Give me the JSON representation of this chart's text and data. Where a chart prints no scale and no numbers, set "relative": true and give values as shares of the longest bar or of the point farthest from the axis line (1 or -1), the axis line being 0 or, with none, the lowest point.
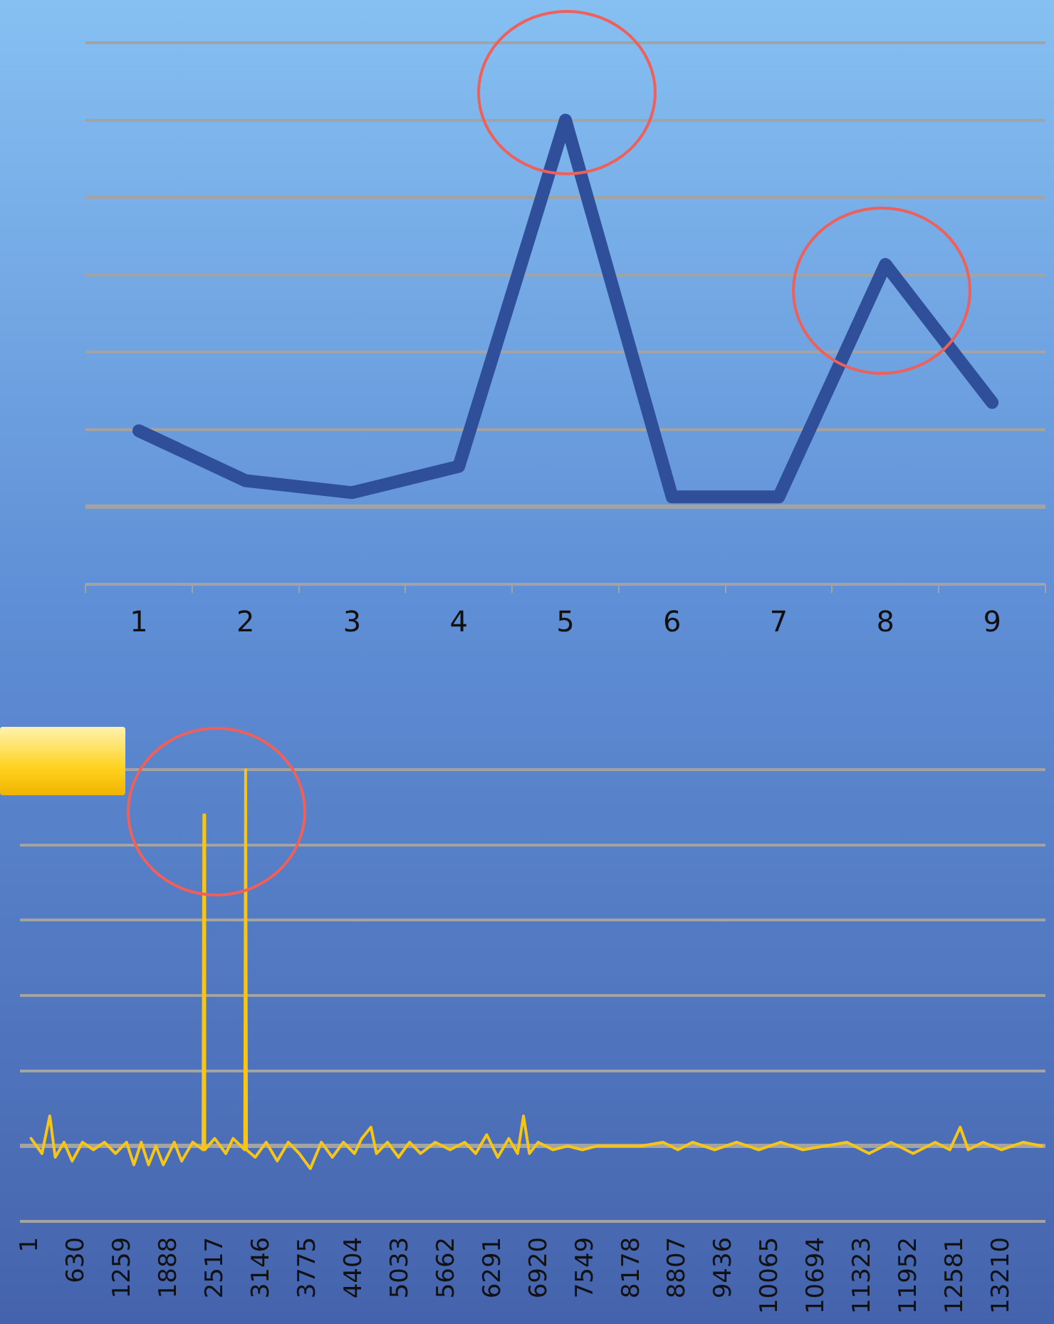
{
  "chart_data": [
    {
      "type": "line",
      "categories": [
        "1",
        "2",
        "3",
        "4",
        "5",
        "6",
        "7",
        "8",
        "9"
      ],
      "relative": true,
      "grid": "y",
      "marker": "none",
      "series": [
        {
          "color": "#2f4f9b",
          "values": [
            0.197,
            0.068,
            0.037,
            0.105,
            1,
            0.026,
            0.026,
            0.627,
            0.27
          ]
        }
      ]
    },
    {
      "type": "line",
      "relative": true,
      "grid": "y",
      "marker": "none",
      "xlim": [
        -150,
        13800
      ],
      "xticks": [
        1,
        630,
        1259,
        1888,
        2517,
        3146,
        3775,
        4404,
        5033,
        5662,
        6291,
        6920,
        7549,
        8178,
        8807,
        9436,
        10065,
        10694,
        11323,
        11952,
        12581,
        13210
      ],
      "series": [
        {
          "color": "#f5c518",
          "x": [
            1,
            150,
            256,
            330,
            450,
            560,
            700,
            850,
            1000,
            1150,
            1300,
            1400,
            1500,
            1600,
            1700,
            1800,
            1950,
            2050,
            2200,
            2340,
            2352,
            2364,
            2500,
            2650,
            2750,
            2908,
            2920,
            2932,
            3050,
            3200,
            3350,
            3500,
            3650,
            3800,
            3950,
            4100,
            4250,
            4400,
            4500,
            4625,
            4700,
            4850,
            5000,
            5150,
            5300,
            5500,
            5700,
            5900,
            6050,
            6200,
            6350,
            6500,
            6620,
            6700,
            6780,
            6900,
            7100,
            7300,
            7500,
            7700,
            8000,
            8300,
            8600,
            8800,
            9000,
            9300,
            9600,
            9900,
            10200,
            10500,
            10800,
            11100,
            11400,
            11700,
            12000,
            12300,
            12500,
            12640,
            12750,
            12950,
            13200,
            13500,
            13750
          ],
          "values": [
            0.02,
            -0.02,
            0.08,
            -0.03,
            0.01,
            -0.04,
            0.01,
            -0.01,
            0.01,
            -0.02,
            0.01,
            -0.05,
            0.01,
            -0.05,
            0,
            -0.05,
            0.01,
            -0.04,
            0.01,
            -0.01,
            0.88,
            -0.01,
            0.02,
            -0.02,
            0.02,
            -0.01,
            1,
            -0.01,
            -0.03,
            0.01,
            -0.04,
            0.01,
            -0.02,
            -0.06,
            0.01,
            -0.03,
            0.01,
            -0.02,
            0.02,
            0.05,
            -0.02,
            0.01,
            -0.03,
            0.01,
            -0.02,
            0.01,
            -0.01,
            0.01,
            -0.02,
            0.03,
            -0.03,
            0.02,
            -0.02,
            0.08,
            -0.02,
            0.01,
            -0.01,
            0,
            -0.01,
            0,
            0,
            0,
            0.01,
            -0.01,
            0.01,
            -0.01,
            0.01,
            -0.01,
            0.01,
            -0.01,
            0,
            0.01,
            -0.02,
            0.01,
            -0.02,
            0.01,
            -0.01,
            0.05,
            -0.01,
            0.01,
            -0.01,
            0.01,
            0
          ]
        }
      ]
    }
  ]
}
